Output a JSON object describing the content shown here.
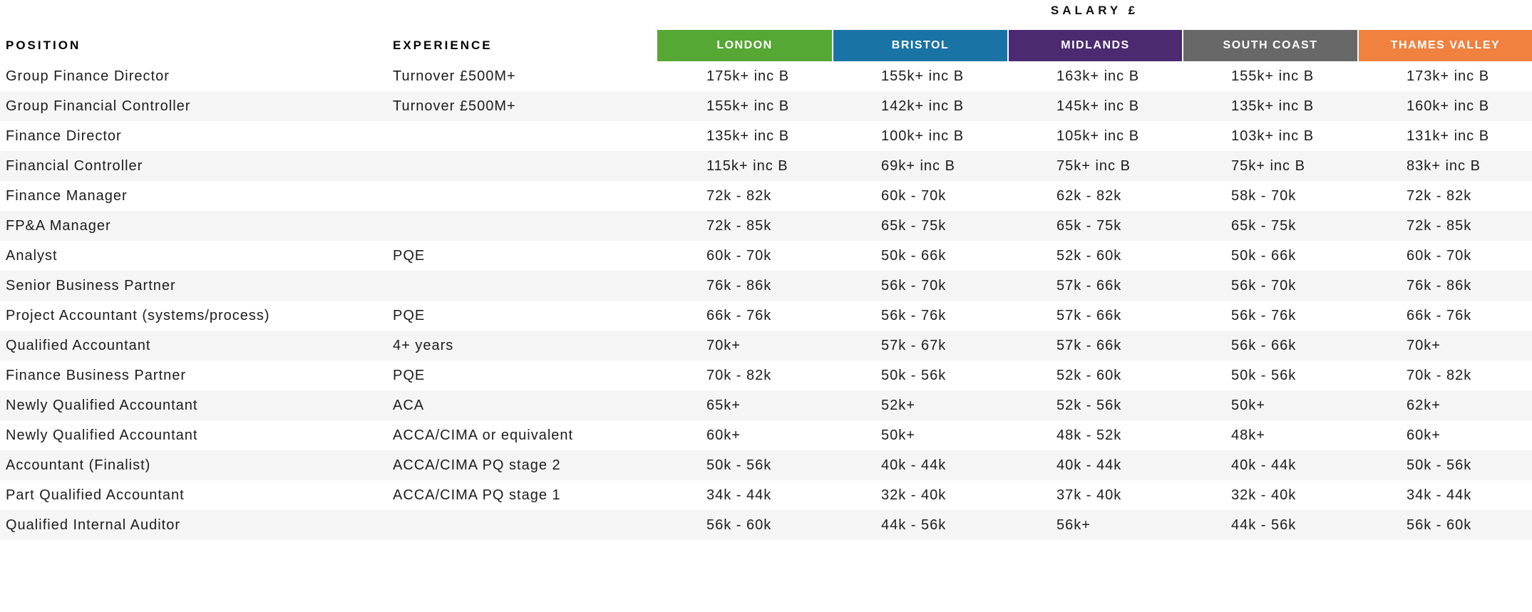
{
  "title": "SALARY £",
  "columns": {
    "position_label": "POSITION",
    "experience_label": "EXPERIENCE",
    "regions": [
      {
        "label": "LONDON",
        "color": "#56a733"
      },
      {
        "label": "BRISTOL",
        "color": "#1a73a5"
      },
      {
        "label": "MIDLANDS",
        "color": "#4b2a70"
      },
      {
        "label": "SOUTH COAST",
        "color": "#686868"
      },
      {
        "label": "THAMES VALLEY",
        "color": "#f0813f"
      }
    ]
  },
  "rows": [
    {
      "position": "Group Finance Director",
      "experience": "Turnover £500M+",
      "salaries": [
        "175k+ inc B",
        "155k+ inc B",
        "163k+ inc B",
        "155k+ inc B",
        "173k+ inc B"
      ]
    },
    {
      "position": "Group Financial Controller",
      "experience": "Turnover £500M+",
      "salaries": [
        "155k+ inc B",
        "142k+ inc B",
        "145k+ inc B",
        "135k+ inc B",
        "160k+ inc B"
      ]
    },
    {
      "position": "Finance Director",
      "experience": "",
      "salaries": [
        "135k+ inc B",
        "100k+ inc B",
        "105k+ inc B",
        "103k+ inc B",
        "131k+ inc B"
      ]
    },
    {
      "position": "Financial Controller",
      "experience": "",
      "salaries": [
        "115k+ inc B",
        "69k+ inc B",
        "75k+ inc B",
        "75k+ inc B",
        "83k+ inc B"
      ]
    },
    {
      "position": "Finance Manager",
      "experience": "",
      "salaries": [
        "72k - 82k",
        "60k - 70k",
        "62k - 82k",
        "58k - 70k",
        "72k - 82k"
      ]
    },
    {
      "position": "FP&A Manager",
      "experience": "",
      "salaries": [
        "72k - 85k",
        "65k - 75k",
        "65k - 75k",
        "65k - 75k",
        "72k - 85k"
      ]
    },
    {
      "position": "Analyst",
      "experience": "PQE",
      "salaries": [
        "60k - 70k",
        "50k - 66k",
        "52k - 60k",
        "50k - 66k",
        "60k - 70k"
      ]
    },
    {
      "position": "Senior Business Partner",
      "experience": "",
      "salaries": [
        "76k - 86k",
        "56k - 70k",
        "57k - 66k",
        "56k - 70k",
        "76k - 86k"
      ]
    },
    {
      "position": "Project Accountant (systems/process)",
      "experience": "PQE",
      "salaries": [
        "66k - 76k",
        "56k - 76k",
        "57k - 66k",
        "56k - 76k",
        "66k - 76k"
      ]
    },
    {
      "position": "Qualified Accountant",
      "experience": "4+ years",
      "salaries": [
        "70k+",
        "57k - 67k",
        "57k - 66k",
        "56k - 66k",
        "70k+"
      ]
    },
    {
      "position": "Finance Business Partner",
      "experience": "PQE",
      "salaries": [
        "70k - 82k",
        "50k - 56k",
        "52k - 60k",
        "50k - 56k",
        "70k - 82k"
      ]
    },
    {
      "position": "Newly Qualified Accountant",
      "experience": "ACA",
      "salaries": [
        "65k+",
        "52k+",
        "52k - 56k",
        "50k+",
        "62k+"
      ]
    },
    {
      "position": "Newly Qualified Accountant",
      "experience": "ACCA/CIMA or equivalent",
      "salaries": [
        "60k+",
        "50k+",
        "48k - 52k",
        "48k+",
        "60k+"
      ]
    },
    {
      "position": "Accountant (Finalist)",
      "experience": "ACCA/CIMA PQ stage 2",
      "salaries": [
        "50k - 56k",
        "40k - 44k",
        "40k - 44k",
        "40k - 44k",
        "50k - 56k"
      ]
    },
    {
      "position": "Part Qualified Accountant",
      "experience": "ACCA/CIMA PQ stage 1",
      "salaries": [
        "34k - 44k",
        "32k - 40k",
        "37k - 40k",
        "32k - 40k",
        "34k - 44k"
      ]
    },
    {
      "position": "Qualified Internal Auditor",
      "experience": "",
      "salaries": [
        "56k - 60k",
        "44k - 56k",
        "56k+",
        "44k - 56k",
        "56k - 60k"
      ]
    }
  ]
}
